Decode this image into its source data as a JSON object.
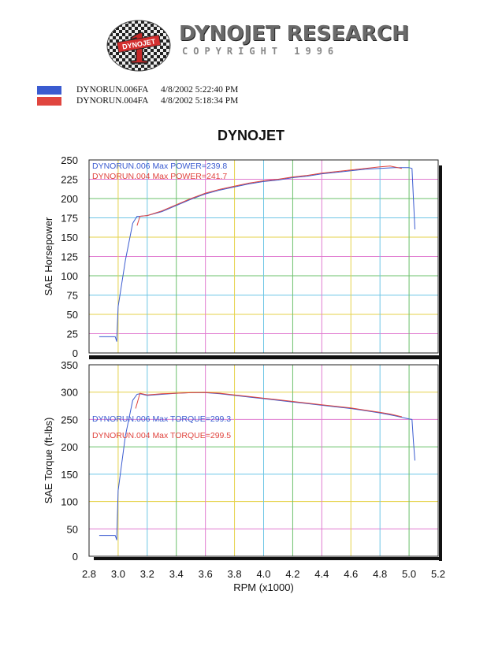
{
  "header": {
    "logo_badge_text": "DYNOJET",
    "logo_title": "DYNOJET RESEARCH",
    "logo_subtitle": "COPYRIGHT 1996"
  },
  "runs": [
    {
      "name": "DYNORUN.006FA",
      "datetime": "4/8/2002 5:22:40 PM",
      "color": "#3a5bd0"
    },
    {
      "name": "DYNORUN.004FA",
      "datetime": "4/8/2002 5:18:34 PM",
      "color": "#e0453f"
    }
  ],
  "chart_data": [
    {
      "type": "line",
      "title": "DYNOJET",
      "xlabel": "RPM (x1000)",
      "ylabel": "SAE Horsepower",
      "xlim": [
        2.8,
        5.2
      ],
      "ylim": [
        0,
        250
      ],
      "yticks": [
        0,
        25,
        50,
        75,
        100,
        125,
        150,
        175,
        200,
        225,
        250
      ],
      "grid": true,
      "legend": [
        {
          "text": "DYNORUN.006  Max POWER=239.8",
          "color": "#3a5bd0"
        },
        {
          "text": "DYNORUN.004  Max POWER=241.7",
          "color": "#e0453f"
        }
      ],
      "series": [
        {
          "name": "DYNORUN.006",
          "color": "#3a5bd0",
          "x": [
            2.87,
            2.98,
            2.99,
            3.0,
            3.05,
            3.1,
            3.13,
            3.15,
            3.2,
            3.3,
            3.4,
            3.5,
            3.6,
            3.7,
            3.8,
            3.9,
            4.0,
            4.1,
            4.2,
            4.3,
            4.4,
            4.5,
            4.6,
            4.7,
            4.8,
            4.9,
            5.0,
            5.02,
            5.03,
            5.04
          ],
          "values": [
            21,
            21,
            15,
            60,
            120,
            168,
            177,
            177,
            178,
            183,
            191,
            199,
            206,
            211,
            215,
            219,
            222,
            224,
            227,
            229,
            232,
            234,
            236,
            238,
            239,
            240,
            240,
            239,
            200,
            160
          ]
        },
        {
          "name": "DYNORUN.004",
          "color": "#e0453f",
          "x": [
            3.13,
            3.15,
            3.2,
            3.3,
            3.4,
            3.5,
            3.6,
            3.7,
            3.8,
            3.9,
            4.0,
            4.1,
            4.2,
            4.3,
            4.4,
            4.5,
            4.6,
            4.7,
            4.8,
            4.87,
            4.95
          ],
          "values": [
            165,
            177,
            178,
            184,
            192,
            200,
            207,
            212,
            216,
            220,
            223,
            225,
            228,
            230,
            233,
            235,
            237,
            239,
            241,
            242,
            239
          ]
        }
      ]
    },
    {
      "type": "line",
      "xlabel": "RPM (x1000)",
      "ylabel": "SAE Torque (ft-lbs)",
      "xlim": [
        2.8,
        5.2
      ],
      "ylim": [
        0,
        350
      ],
      "yticks": [
        0,
        50,
        100,
        150,
        200,
        250,
        300,
        350
      ],
      "xticks": [
        2.8,
        3.0,
        3.2,
        3.4,
        3.6,
        3.8,
        4.0,
        4.2,
        4.4,
        4.6,
        4.8,
        5.0,
        5.2
      ],
      "grid": true,
      "legend": [
        {
          "text": "DYNORUN.006  Max TORQUE=299.3",
          "color": "#3a5bd0"
        },
        {
          "text": "DYNORUN.004  Max TORQUE=299.5",
          "color": "#e0453f"
        }
      ],
      "series": [
        {
          "name": "DYNORUN.006",
          "color": "#3a5bd0",
          "x": [
            2.87,
            2.98,
            2.99,
            3.0,
            3.05,
            3.1,
            3.13,
            3.15,
            3.2,
            3.3,
            3.4,
            3.5,
            3.6,
            3.7,
            3.8,
            3.9,
            4.0,
            4.1,
            4.2,
            4.3,
            4.4,
            4.5,
            4.6,
            4.7,
            4.8,
            4.9,
            5.0,
            5.02,
            5.03,
            5.04
          ],
          "values": [
            38,
            38,
            30,
            120,
            220,
            285,
            296,
            297,
            294,
            296,
            298,
            299,
            299,
            297,
            294,
            291,
            288,
            285,
            282,
            279,
            276,
            273,
            270,
            266,
            262,
            257,
            251,
            250,
            210,
            175
          ]
        },
        {
          "name": "DYNORUN.004",
          "color": "#e0453f",
          "x": [
            3.12,
            3.15,
            3.2,
            3.3,
            3.4,
            3.5,
            3.6,
            3.7,
            3.8,
            3.9,
            4.0,
            4.1,
            4.2,
            4.3,
            4.4,
            4.5,
            4.6,
            4.7,
            4.8,
            4.87,
            4.95
          ],
          "values": [
            270,
            298,
            295,
            297,
            298,
            299,
            299.5,
            298,
            295,
            292,
            289,
            286,
            283,
            280,
            277,
            274,
            271,
            267,
            263,
            260,
            255
          ]
        }
      ]
    }
  ]
}
